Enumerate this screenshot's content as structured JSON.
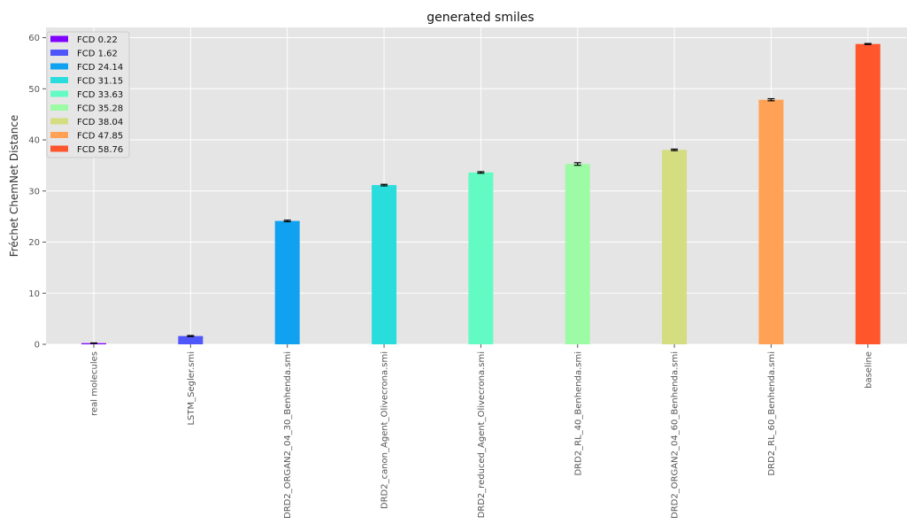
{
  "chart_data": {
    "type": "bar",
    "title": "generated smiles",
    "xlabel": "",
    "ylabel": "Fréchet ChemNet Distance",
    "ylim": [
      0,
      62
    ],
    "yticks": [
      0,
      10,
      20,
      30,
      40,
      50,
      60
    ],
    "grid": true,
    "legend_position": "top-left",
    "categories": [
      "real molecules",
      "LSTM_Segler.smi",
      "DRD2_ORGAN2_04_30_Benhenda.smi",
      "DRD2_canon_Agent_Olivecrona.smi",
      "DRD2_reduced_Agent_Olivecrona.smi",
      "DRD2_RL_40_Benhenda.smi",
      "DRD2_ORGAN2_04_60_Benhenda.smi",
      "DRD2_RL_60_Benhenda.smi",
      "baseline"
    ],
    "values": [
      0.22,
      1.62,
      24.14,
      31.15,
      33.63,
      35.28,
      38.04,
      47.85,
      58.76
    ],
    "errors": [
      0.05,
      0.1,
      0.15,
      0.15,
      0.15,
      0.25,
      0.15,
      0.2,
      0.1
    ],
    "colors": [
      "#8000ff",
      "#4f57fb",
      "#10a2f0",
      "#2adddd",
      "#62fbc4",
      "#9cfba4",
      "#d4dd80",
      "#ffa256",
      "#ff562c"
    ],
    "legend": [
      "FCD 0.22",
      "FCD 1.62",
      "FCD 24.14",
      "FCD 31.15",
      "FCD 33.63",
      "FCD 35.28",
      "FCD 38.04",
      "FCD 47.85",
      "FCD 58.76"
    ]
  }
}
